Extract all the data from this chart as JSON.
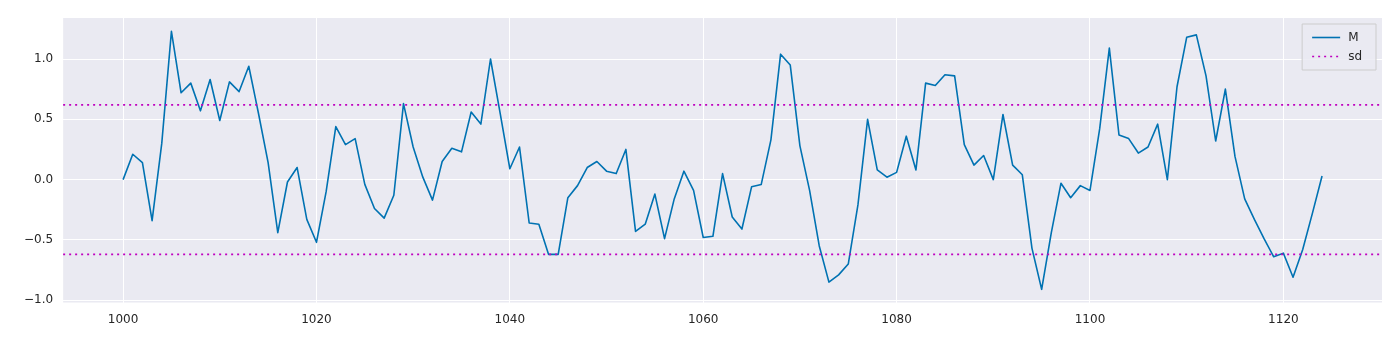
{
  "chart_data": {
    "type": "line",
    "x": [
      1000,
      1001,
      1002,
      1003,
      1004,
      1005,
      1006,
      1007,
      1008,
      1009,
      1010,
      1011,
      1012,
      1013,
      1014,
      1015,
      1016,
      1017,
      1018,
      1019,
      1020,
      1021,
      1022,
      1023,
      1024,
      1025,
      1026,
      1027,
      1028,
      1029,
      1030,
      1031,
      1032,
      1033,
      1034,
      1035,
      1036,
      1037,
      1038,
      1039,
      1040,
      1041,
      1042,
      1043,
      1044,
      1045,
      1046,
      1047,
      1048,
      1049,
      1050,
      1051,
      1052,
      1053,
      1054,
      1055,
      1056,
      1057,
      1058,
      1059,
      1060,
      1061,
      1062,
      1063,
      1064,
      1065,
      1066,
      1067,
      1068,
      1069,
      1070,
      1071,
      1072,
      1073,
      1074,
      1075,
      1076,
      1077,
      1078,
      1079,
      1080,
      1081,
      1082,
      1083,
      1084,
      1085,
      1086,
      1087,
      1088,
      1089,
      1090,
      1091,
      1092,
      1093,
      1094,
      1095,
      1096,
      1097,
      1098,
      1099,
      1100,
      1101,
      1102,
      1103,
      1104,
      1105,
      1106,
      1107,
      1108,
      1109,
      1110,
      1111,
      1112,
      1113,
      1114,
      1115,
      1116,
      1117,
      1118,
      1119,
      1120,
      1121,
      1122,
      1123,
      1124
    ],
    "series": [
      {
        "name": "M",
        "color": "#0072b2",
        "values": [
          0.0,
          0.21,
          0.14,
          -0.34,
          0.3,
          1.23,
          0.72,
          0.8,
          0.57,
          0.83,
          0.49,
          0.81,
          0.73,
          0.94,
          0.55,
          0.14,
          -0.44,
          -0.02,
          0.1,
          -0.33,
          -0.52,
          -0.1,
          0.44,
          0.29,
          0.34,
          -0.04,
          -0.24,
          -0.32,
          -0.13,
          0.63,
          0.27,
          0.02,
          -0.17,
          0.15,
          0.26,
          0.23,
          0.56,
          0.46,
          1.0,
          0.55,
          0.09,
          0.27,
          -0.36,
          -0.37,
          -0.62,
          -0.62,
          -0.15,
          -0.05,
          0.1,
          0.15,
          0.07,
          0.05,
          0.25,
          -0.43,
          -0.37,
          -0.12,
          -0.49,
          -0.16,
          0.07,
          -0.09,
          -0.48,
          -0.47,
          0.05,
          -0.31,
          -0.41,
          -0.06,
          -0.04,
          0.33,
          1.04,
          0.95,
          0.28,
          -0.09,
          -0.55,
          -0.85,
          -0.79,
          -0.7,
          -0.21,
          0.5,
          0.08,
          0.02,
          0.06,
          0.36,
          0.08,
          0.8,
          0.78,
          0.87,
          0.86,
          0.29,
          0.12,
          0.2,
          0.0,
          0.54,
          0.12,
          0.04,
          -0.57,
          -0.91,
          -0.44,
          -0.03,
          -0.15,
          -0.05,
          -0.09,
          0.42,
          1.09,
          0.37,
          0.34,
          0.22,
          0.27,
          0.46,
          0.0,
          0.77,
          1.18,
          1.2,
          0.86,
          0.32,
          0.75,
          0.19,
          -0.16,
          -0.33,
          -0.49,
          -0.64,
          -0.61,
          -0.81,
          -0.58,
          -0.28,
          0.03
        ]
      }
    ],
    "ref_lines": [
      {
        "axis": "y",
        "value": 0.62,
        "label": "sd",
        "color": "#bf00bf",
        "line_style": "dotted"
      },
      {
        "axis": "y",
        "value": -0.62,
        "color": "#bf00bf",
        "line_style": "dotted"
      }
    ],
    "xlim": [
      993.8,
      1130.2
    ],
    "xticks": [
      1000,
      1020,
      1040,
      1060,
      1080,
      1100,
      1120
    ],
    "ylim": [
      -1.02,
      1.34
    ],
    "yticks": [
      {
        "value": -1.0,
        "label": "−1.0"
      },
      {
        "value": -0.5,
        "label": "−0.5"
      },
      {
        "value": 0.0,
        "label": "0.0"
      },
      {
        "value": 0.5,
        "label": "0.5"
      },
      {
        "value": 1.0,
        "label": "1.0"
      }
    ],
    "grid": true,
    "legend": "top right",
    "line_style": "solid",
    "marker": "none"
  }
}
